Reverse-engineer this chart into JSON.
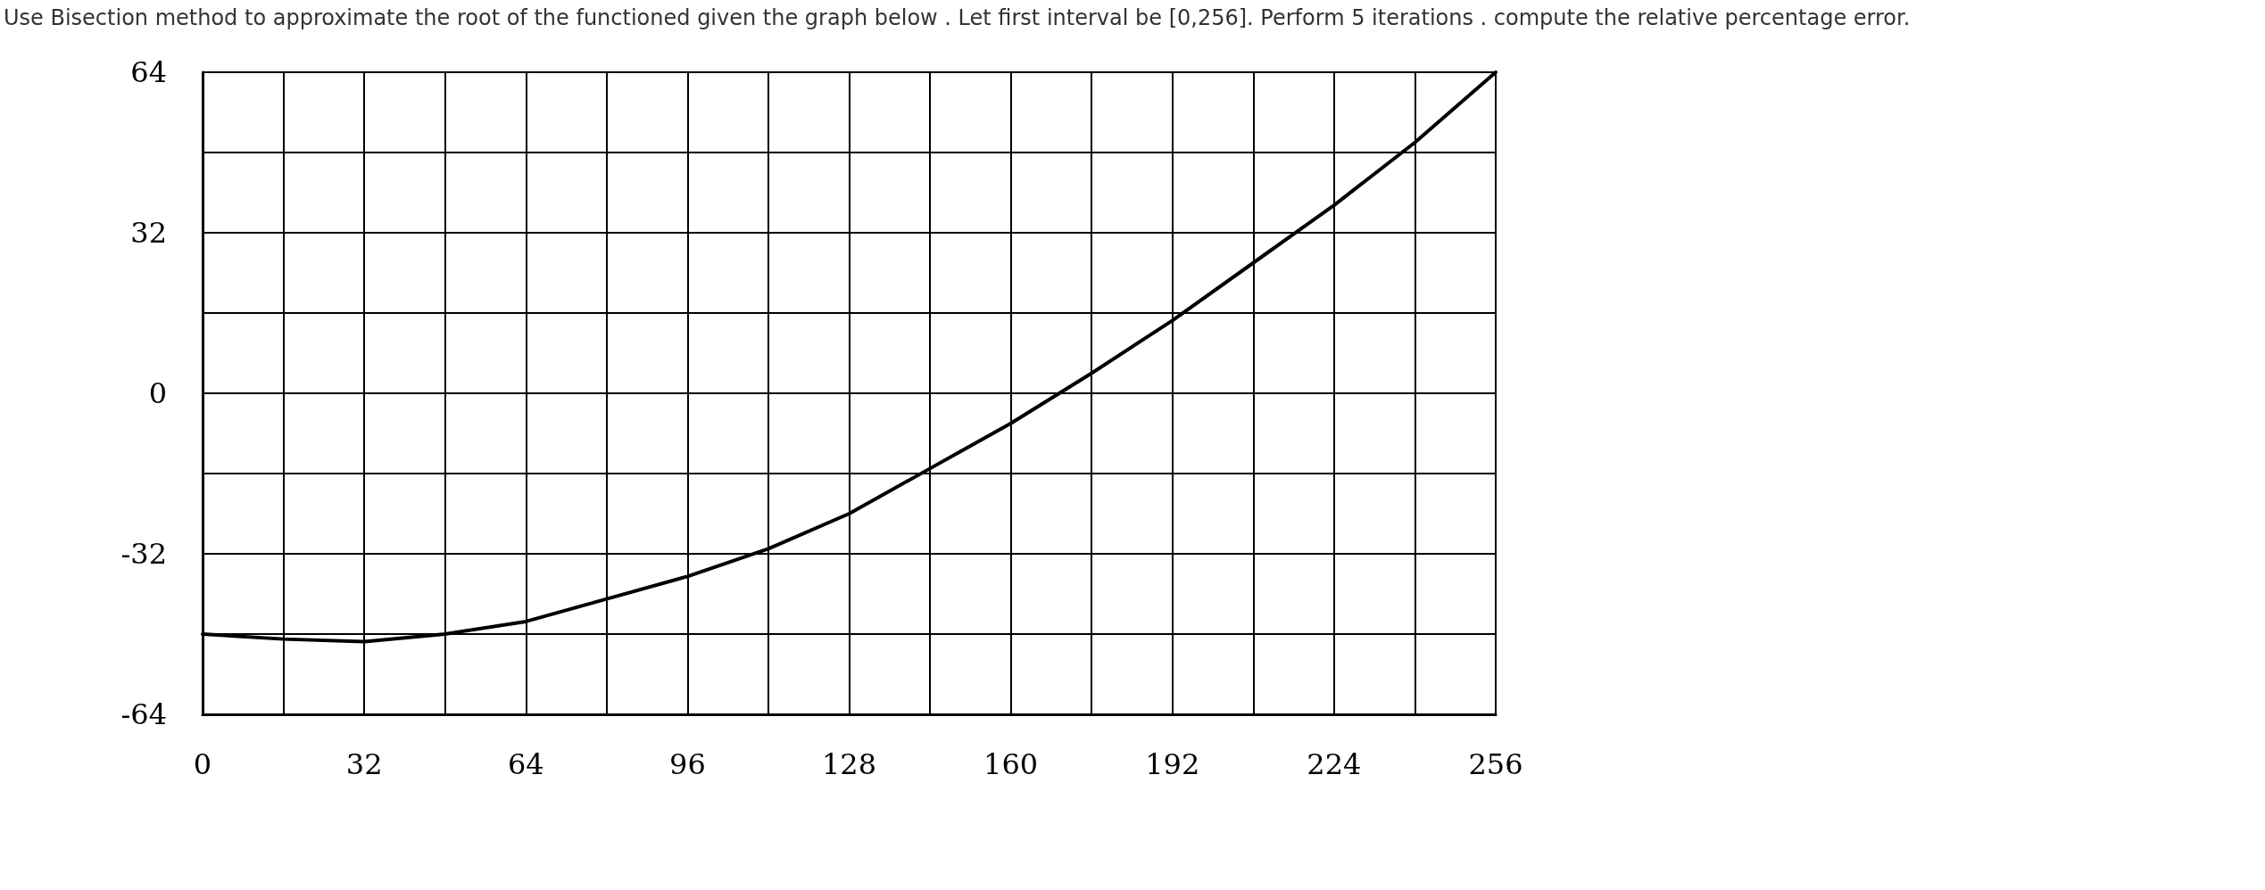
{
  "chart_data": {
    "type": "line",
    "title": "Use Bisection method to approximate the root of the functioned given the graph below . Let first interval  be [0,256]. Perform 5 iterations . compute the relative percentage error.",
    "x": [
      0,
      16,
      32,
      48,
      64,
      80,
      96,
      112,
      128,
      144,
      160,
      176,
      192,
      208,
      224,
      240,
      256
    ],
    "series": [
      {
        "color": "#000000",
        "values": [
          -48,
          -49,
          -49.5,
          -48,
          -45.5,
          -41,
          -36.5,
          -31,
          -24,
          -15,
          -6,
          4,
          14.5,
          26,
          37.5,
          50,
          64
        ]
      }
    ],
    "xlim": [
      0,
      256
    ],
    "xticks": [
      0,
      {
        "value": 16,
        "label": null
      },
      32,
      {
        "value": 48,
        "label": null
      },
      64,
      {
        "value": 80,
        "label": null
      },
      96,
      {
        "value": 112,
        "label": null
      },
      128,
      {
        "value": 144,
        "label": null
      },
      160,
      {
        "value": 176,
        "label": null
      },
      192,
      {
        "value": 208,
        "label": null
      },
      224,
      {
        "value": 240,
        "label": null
      },
      256
    ],
    "ylim": [
      -64,
      64
    ],
    "yticks": [
      -64,
      {
        "value": -48,
        "label": null
      },
      -32,
      {
        "value": -16,
        "label": null
      },
      0,
      {
        "value": 16,
        "label": null
      },
      32,
      {
        "value": 48,
        "label": null
      },
      64
    ],
    "grid": true,
    "marker": "none",
    "line_style": "solid"
  }
}
